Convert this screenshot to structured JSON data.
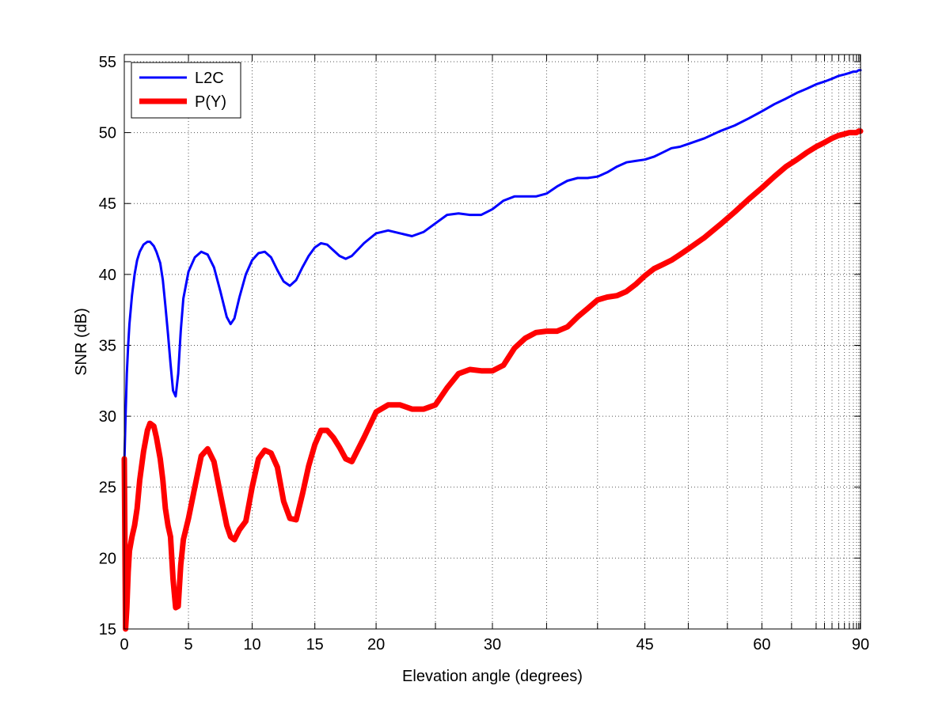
{
  "chart_data": {
    "type": "line",
    "title": "",
    "xlabel": "Elevation angle (degrees)",
    "ylabel": "SNR (dB)",
    "x_scale": "sine of elevation angle",
    "xlim": [
      0,
      90
    ],
    "ylim": [
      15,
      55.5
    ],
    "grid": true,
    "legend_position": "top-left",
    "x_tick_labels": [
      "0",
      "5",
      "10",
      "15",
      "20",
      "30",
      "45",
      "60",
      "90"
    ],
    "x_minor_grid": [
      25,
      35,
      40,
      50,
      55,
      65,
      70,
      72,
      74,
      76,
      78,
      80,
      82,
      84,
      86,
      88
    ],
    "y_ticks": [
      15,
      20,
      25,
      30,
      35,
      40,
      45,
      50,
      55
    ],
    "series": [
      {
        "name": "L2C",
        "color": "#0000ff",
        "x": [
          0,
          0.1,
          0.2,
          0.3,
          0.4,
          0.6,
          0.8,
          1.0,
          1.2,
          1.5,
          1.8,
          2.0,
          2.3,
          2.5,
          2.8,
          3.0,
          3.2,
          3.4,
          3.6,
          3.8,
          4.0,
          4.2,
          4.4,
          4.6,
          5.0,
          5.5,
          6.0,
          6.5,
          7.0,
          7.5,
          8.0,
          8.3,
          8.6,
          9.0,
          9.5,
          10.0,
          10.5,
          11.0,
          11.5,
          12.0,
          12.5,
          13.0,
          13.5,
          14.0,
          14.5,
          15.0,
          15.5,
          16.0,
          16.5,
          17.0,
          17.5,
          18.0,
          19.0,
          20.0,
          21.0,
          22.0,
          23.0,
          24.0,
          25.0,
          26.0,
          27.0,
          28.0,
          29.0,
          30.0,
          31.0,
          32.0,
          33.0,
          34.0,
          35.0,
          36.0,
          37.0,
          38.0,
          39.0,
          40.0,
          41.0,
          42.0,
          43.0,
          44.0,
          45.0,
          46.0,
          47.0,
          48.0,
          49.0,
          50.0,
          52.0,
          54.0,
          56.0,
          58.0,
          60.0,
          62.0,
          64.0,
          66.0,
          68.0,
          70.0,
          72.0,
          74.0,
          76.0,
          78.0,
          80.0,
          82.0,
          84.0,
          86.0,
          88.0,
          90.0
        ],
        "y": [
          26.5,
          30,
          33,
          35,
          36.5,
          38.5,
          40,
          41,
          41.6,
          42.1,
          42.3,
          42.3,
          42,
          41.6,
          40.8,
          39.6,
          37.8,
          35.8,
          33.7,
          31.8,
          31.4,
          33,
          36,
          38.3,
          40.2,
          41.2,
          41.6,
          41.4,
          40.5,
          38.8,
          37,
          36.5,
          36.9,
          38.4,
          40,
          41,
          41.5,
          41.6,
          41.2,
          40.3,
          39.5,
          39.2,
          39.6,
          40.5,
          41.3,
          41.9,
          42.2,
          42.1,
          41.7,
          41.3,
          41.1,
          41.3,
          42.2,
          42.9,
          43.1,
          42.9,
          42.7,
          43.0,
          43.6,
          44.2,
          44.3,
          44.2,
          44.2,
          44.6,
          45.2,
          45.5,
          45.5,
          45.5,
          45.7,
          46.2,
          46.6,
          46.8,
          46.8,
          46.9,
          47.2,
          47.6,
          47.9,
          48.0,
          48.1,
          48.3,
          48.6,
          48.9,
          49.0,
          49.2,
          49.6,
          50.1,
          50.5,
          51.0,
          51.5,
          52.0,
          52.4,
          52.8,
          53.1,
          53.4,
          53.6,
          53.8,
          54.0,
          54.1,
          54.2,
          54.3,
          54.3,
          54.4,
          54.4,
          54.4
        ]
      },
      {
        "name": "P(Y)",
        "color": "#ff0000",
        "x": [
          0,
          0.1,
          0.2,
          0.3,
          0.4,
          0.6,
          0.8,
          1.0,
          1.2,
          1.5,
          1.8,
          2.0,
          2.3,
          2.5,
          2.8,
          3.0,
          3.2,
          3.4,
          3.6,
          3.8,
          4.0,
          4.2,
          4.4,
          4.6,
          5.0,
          5.5,
          6.0,
          6.5,
          7.0,
          7.5,
          8.0,
          8.3,
          8.6,
          9.0,
          9.5,
          10.0,
          10.5,
          11.0,
          11.5,
          12.0,
          12.5,
          13.0,
          13.5,
          14.0,
          14.5,
          15.0,
          15.5,
          16.0,
          16.5,
          17.0,
          17.5,
          18.0,
          19.0,
          20.0,
          21.0,
          22.0,
          23.0,
          24.0,
          25.0,
          26.0,
          27.0,
          28.0,
          29.0,
          30.0,
          31.0,
          32.0,
          33.0,
          34.0,
          35.0,
          36.0,
          37.0,
          38.0,
          39.0,
          40.0,
          41.0,
          42.0,
          43.0,
          44.0,
          45.0,
          46.0,
          47.0,
          48.0,
          49.0,
          50.0,
          52.0,
          54.0,
          56.0,
          58.0,
          60.0,
          62.0,
          64.0,
          66.0,
          68.0,
          70.0,
          72.0,
          74.0,
          76.0,
          78.0,
          80.0,
          82.0,
          84.0,
          86.0,
          88.0,
          90.0
        ],
        "y": [
          27,
          15,
          16.5,
          19,
          20.5,
          21.5,
          22.3,
          23.5,
          25.5,
          27.5,
          29.0,
          29.5,
          29.3,
          28.5,
          27.0,
          25.5,
          23.5,
          22.3,
          21.5,
          18.5,
          16.5,
          16.6,
          19.5,
          21.3,
          22.8,
          25.0,
          27.2,
          27.7,
          26.8,
          24.5,
          22.3,
          21.5,
          21.3,
          22.0,
          22.6,
          25.0,
          27.0,
          27.6,
          27.4,
          26.4,
          24.0,
          22.8,
          22.7,
          24.5,
          26.5,
          28.0,
          29.0,
          29.0,
          28.5,
          27.8,
          27.0,
          26.8,
          28.5,
          30.3,
          30.8,
          30.8,
          30.5,
          30.5,
          30.8,
          32.0,
          33.0,
          33.3,
          33.2,
          33.2,
          33.6,
          34.8,
          35.5,
          35.9,
          36.0,
          36.0,
          36.3,
          37.0,
          37.6,
          38.2,
          38.4,
          38.5,
          38.8,
          39.3,
          39.9,
          40.4,
          40.7,
          41.0,
          41.4,
          41.8,
          42.6,
          43.5,
          44.4,
          45.3,
          46.1,
          46.9,
          47.6,
          48.1,
          48.6,
          49.0,
          49.3,
          49.6,
          49.8,
          49.9,
          50.0,
          50.0,
          50.0,
          50.1,
          50.1,
          50.1
        ]
      }
    ]
  }
}
